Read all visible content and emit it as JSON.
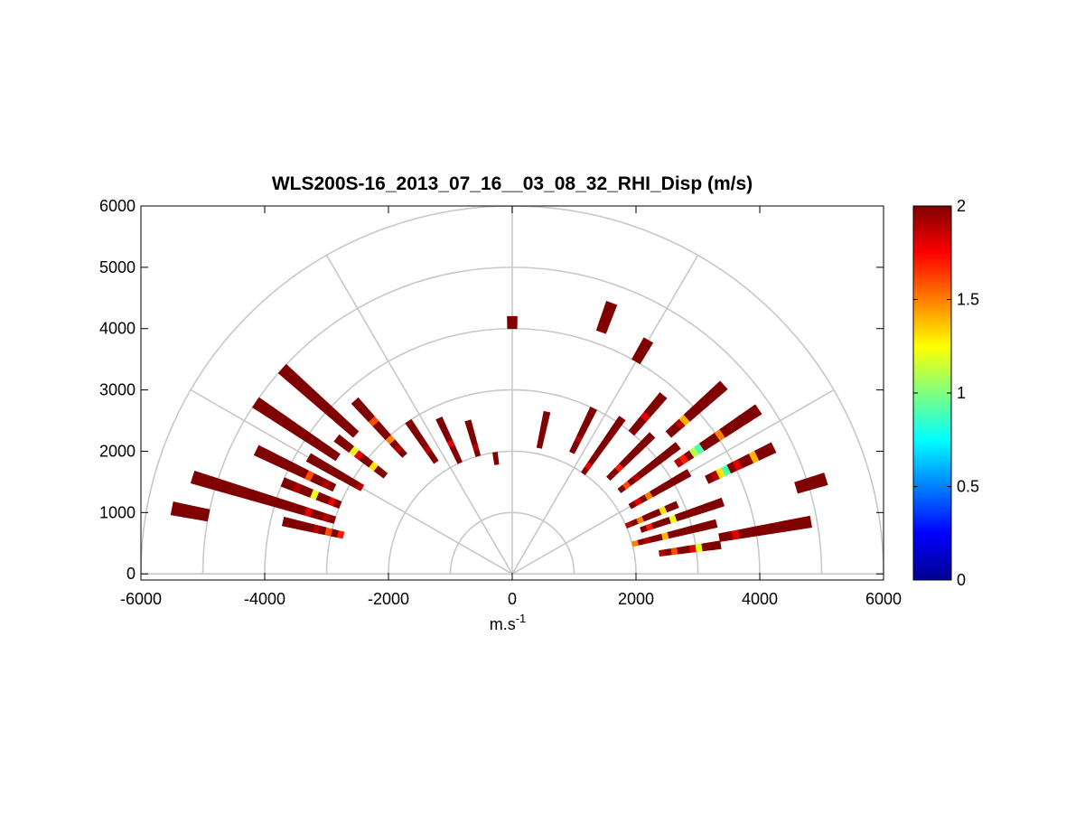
{
  "chart_data": {
    "type": "heatmap",
    "subtype": "polar-rhi-scan",
    "title": "WLS200S-16_2013_07_16__03_08_32_RHI_Disp (m/s)",
    "xlabel": "m.s",
    "xlabel_superscript": "-1",
    "ylabel": "",
    "xlim": [
      -6000,
      6000
    ],
    "ylim": [
      -100,
      6000
    ],
    "xticks": [
      -6000,
      -4000,
      -2000,
      0,
      2000,
      4000,
      6000
    ],
    "yticks": [
      0,
      1000,
      2000,
      3000,
      4000,
      5000,
      6000
    ],
    "grid": {
      "range_rings": [
        1000,
        2000,
        3000,
        4000,
        5000,
        6000
      ],
      "spokes_deg": [
        0,
        30,
        60,
        90,
        120,
        150,
        180
      ]
    },
    "colorbar": {
      "min": 0,
      "max": 2,
      "ticks": [
        0,
        0.5,
        1,
        1.5,
        2
      ],
      "tick_labels": [
        "0",
        "0.5",
        "1",
        "1.5",
        "2"
      ],
      "colormap": "jet",
      "placement": "right"
    },
    "colors": {
      "axis": "#000000",
      "grid": "#c8c8c8",
      "background": "#ffffff"
    },
    "cells": [
      {
        "az": 8,
        "r": [
          2400,
          3400
        ],
        "values": [
          1.9,
          2.0,
          1.6,
          2.0,
          2.0,
          1.8,
          1.2,
          2.0,
          2.0,
          2.0
        ]
      },
      {
        "az": 10,
        "r": [
          3400,
          4900
        ],
        "values": [
          2.0,
          2.0,
          1.8,
          2.0,
          2.0,
          2.0,
          2.0,
          2.0,
          2.0,
          2.0,
          2.0,
          2.0,
          2.0,
          2.0
        ]
      },
      {
        "az": 14,
        "r": [
          2000,
          3400
        ],
        "values": [
          1.5,
          2.0,
          1.9,
          2.0,
          2.0,
          1.4,
          2.0,
          2.0,
          2.0,
          2.0,
          2.0,
          2.0,
          2.0,
          2.0
        ]
      },
      {
        "az": 17,
        "r": [
          4800,
          5300
        ],
        "values": [
          2.0,
          2.0,
          2.0,
          2.0,
          2.0
        ]
      },
      {
        "az": 19,
        "r": [
          2200,
          3600
        ],
        "values": [
          2.0,
          1.7,
          2.0,
          2.0,
          2.0,
          1.2,
          2.0,
          2.0,
          2.0,
          2.0,
          2.0,
          2.0,
          2.0,
          2.0
        ]
      },
      {
        "az": 23,
        "r": [
          2000,
          2900
        ],
        "values": [
          1.9,
          2.0,
          1.5,
          2.0,
          2.0,
          2.0,
          1.3,
          2.0,
          2.0
        ]
      },
      {
        "az": 26,
        "r": [
          3500,
          4700
        ],
        "values": [
          2.0,
          1.9,
          1.3,
          0.9,
          2.0,
          1.8,
          2.0,
          2.0,
          1.4,
          2.0,
          2.0,
          2.0
        ]
      },
      {
        "az": 30,
        "r": [
          2200,
          3300
        ],
        "values": [
          2.0,
          1.8,
          2.0,
          1.5,
          2.0,
          2.0,
          2.0,
          2.0,
          2.0,
          2.0,
          2.0
        ]
      },
      {
        "az": 34,
        "r": [
          3200,
          4800
        ],
        "values": [
          1.9,
          1.7,
          2.0,
          1.1,
          0.9,
          2.0,
          2.0,
          2.0,
          1.5,
          2.0,
          2.0,
          2.0,
          2.0,
          2.0,
          2.0,
          2.0
        ]
      },
      {
        "az": 38,
        "r": [
          2200,
          3400
        ],
        "values": [
          2.0,
          1.6,
          2.0,
          1.9,
          2.0,
          2.0,
          2.0,
          2.0,
          2.0,
          2.0,
          2.0,
          2.0
        ]
      },
      {
        "az": 42,
        "r": [
          3400,
          4600
        ],
        "values": [
          2.0,
          2.0,
          1.9,
          1.4,
          2.0,
          2.0,
          2.0,
          2.0,
          2.0,
          2.0,
          2.0,
          2.0
        ]
      },
      {
        "az": 45,
        "r": [
          2200,
          3200
        ],
        "values": [
          2.0,
          2.0,
          1.7,
          2.0,
          2.0,
          2.0,
          2.0,
          2.0,
          2.0,
          2.0
        ]
      },
      {
        "az": 50,
        "r": [
          3000,
          3800
        ],
        "values": [
          2.0,
          2.0,
          2.0,
          1.8,
          2.0,
          2.0,
          2.0,
          2.0
        ]
      },
      {
        "az": 55,
        "r": [
          2000,
          3100
        ],
        "values": [
          2.0,
          1.8,
          2.0,
          2.0,
          2.0,
          2.0,
          2.0,
          2.0,
          2.0,
          2.0,
          2.0
        ]
      },
      {
        "az": 60,
        "r": [
          4000,
          4400
        ],
        "values": [
          2.0,
          2.0,
          2.0,
          2.0
        ]
      },
      {
        "az": 64,
        "r": [
          2200,
          3000
        ],
        "values": [
          2.0,
          2.0,
          1.9,
          2.0,
          2.0,
          2.0,
          2.0,
          2.0
        ]
      },
      {
        "az": 70,
        "r": [
          4200,
          4700
        ],
        "values": [
          2.0,
          2.0,
          2.0,
          2.0,
          2.0
        ]
      },
      {
        "az": 78,
        "r": [
          2100,
          2700
        ],
        "values": [
          2.0,
          2.0,
          2.0,
          2.0,
          2.0,
          2.0
        ]
      },
      {
        "az": 90,
        "r": [
          4000,
          4200
        ],
        "values": [
          2.0,
          2.0
        ]
      },
      {
        "az": 98,
        "r": [
          1800,
          2000
        ],
        "values": [
          2.0,
          2.0
        ]
      },
      {
        "az": 106,
        "r": [
          2000,
          2600
        ],
        "values": [
          2.0,
          1.9,
          2.0,
          2.0,
          2.0,
          2.0
        ]
      },
      {
        "az": 115,
        "r": [
          2000,
          2800
        ],
        "values": [
          2.0,
          2.0,
          2.0,
          1.8,
          2.0,
          2.0,
          2.0,
          2.0
        ]
      },
      {
        "az": 124,
        "r": [
          2200,
          3000
        ],
        "values": [
          2.0,
          2.0,
          1.9,
          2.0,
          2.0,
          2.0,
          2.0,
          2.0
        ]
      },
      {
        "az": 132,
        "r": [
          2600,
          3800
        ],
        "values": [
          2.0,
          1.9,
          2.0,
          1.5,
          2.0,
          2.0,
          2.0,
          1.6,
          2.0,
          2.0,
          2.0,
          2.0
        ]
      },
      {
        "az": 138,
        "r": [
          3400,
          5000
        ],
        "values": [
          2.0,
          2.0,
          2.0,
          2.0,
          2.0,
          2.0,
          2.0,
          2.0,
          2.0,
          2.0,
          2.0,
          2.0,
          2.0,
          2.0,
          2.0,
          2.0
        ]
      },
      {
        "az": 142,
        "r": [
          2600,
          3600
        ],
        "values": [
          2.0,
          2.0,
          1.3,
          2.0,
          2.0,
          1.8,
          1.2,
          2.0,
          2.0,
          2.0
        ]
      },
      {
        "az": 146,
        "r": [
          3400,
          5000
        ],
        "values": [
          2.0,
          2.0,
          2.0,
          2.0,
          2.0,
          2.0,
          2.0,
          2.0,
          2.0,
          2.0,
          2.0,
          2.0,
          2.0,
          2.0,
          2.0,
          2.0
        ]
      },
      {
        "az": 150,
        "r": [
          2800,
          3800
        ],
        "values": [
          1.9,
          2.0,
          2.0,
          2.0,
          2.0,
          2.0,
          2.0,
          2.0,
          2.0,
          2.0
        ]
      },
      {
        "az": 154,
        "r": [
          3200,
          4600
        ],
        "values": [
          2.0,
          1.9,
          2.0,
          2.0,
          1.6,
          2.0,
          2.0,
          2.0,
          2.0,
          2.0,
          2.0,
          2.0,
          2.0,
          2.0
        ]
      },
      {
        "az": 158,
        "r": [
          3000,
          4000
        ],
        "values": [
          2.0,
          1.8,
          2.0,
          2.0,
          1.2,
          2.0,
          2.0,
          1.9,
          2.0,
          2.0
        ]
      },
      {
        "az": 163,
        "r": [
          3000,
          5400
        ],
        "values": [
          2.0,
          1.9,
          2.0,
          2.0,
          1.8,
          2.0,
          2.0,
          2.0,
          2.0,
          2.0,
          2.0,
          2.0,
          2.0,
          2.0,
          2.0,
          2.0,
          2.0,
          2.0,
          2.0,
          2.0,
          2.0,
          2.0,
          2.0,
          2.0
        ]
      },
      {
        "az": 167,
        "r": [
          2800,
          3800
        ],
        "values": [
          1.7,
          2.0,
          1.6,
          2.0,
          1.9,
          2.0,
          2.0,
          2.0,
          2.0,
          2.0
        ]
      },
      {
        "az": 169,
        "r": [
          5000,
          5600
        ],
        "values": [
          2.0,
          2.0,
          2.0,
          2.0,
          2.0,
          2.0
        ]
      }
    ]
  }
}
